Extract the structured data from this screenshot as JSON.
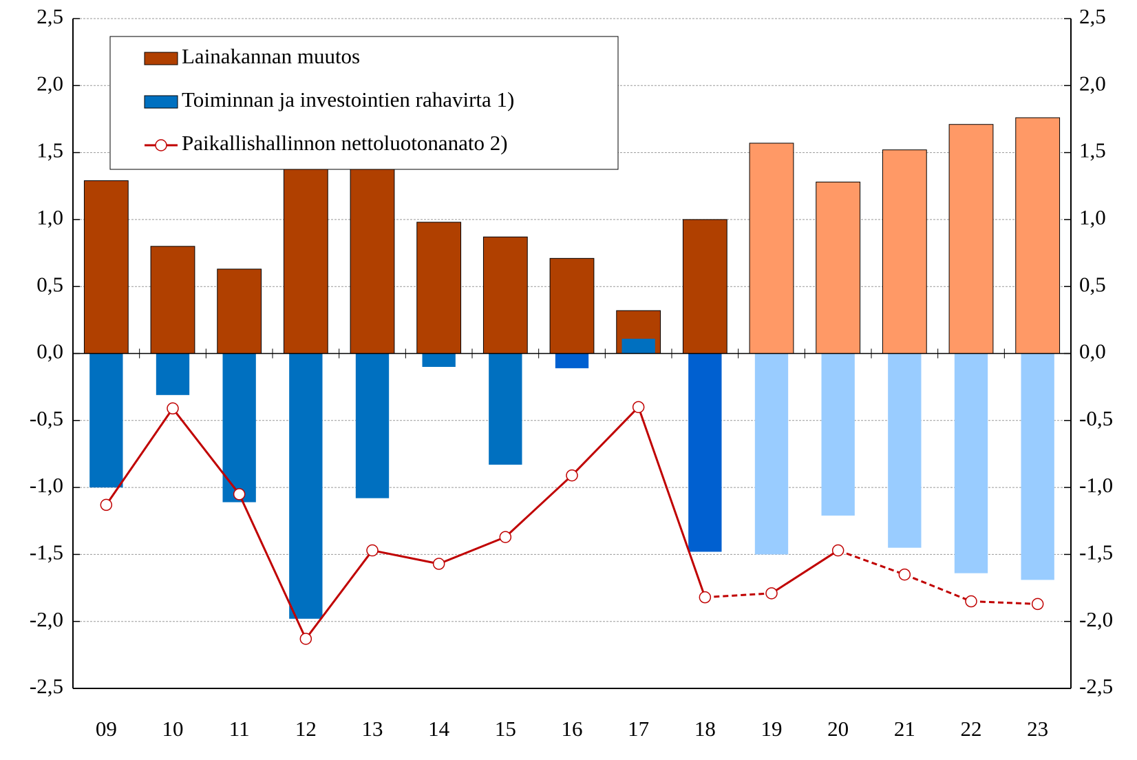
{
  "chart_data": {
    "type": "bar-line",
    "categories": [
      "09",
      "10",
      "11",
      "12",
      "13",
      "14",
      "15",
      "16",
      "17",
      "18",
      "19",
      "20",
      "21",
      "22",
      "23"
    ],
    "series": [
      {
        "name": "Lainakannan muutos",
        "type": "bar",
        "color": "#b04000",
        "colors": [
          "#b04000",
          "#b04000",
          "#b04000",
          "#b04000",
          "#b04000",
          "#b04000",
          "#b04000",
          "#b04000",
          "#b04000",
          "#b04000",
          "#ff9966",
          "#ff9966",
          "#ff9966",
          "#ff9966",
          "#ff9966"
        ],
        "values": [
          1.29,
          0.8,
          0.63,
          2.2,
          1.9,
          0.98,
          0.87,
          0.71,
          0.32,
          1.0,
          1.57,
          1.28,
          1.52,
          1.71,
          1.76
        ]
      },
      {
        "name": "Toiminnan ja investointien rahavirta 1)",
        "type": "bar",
        "color": "#0070c0",
        "colors": [
          "#0070c0",
          "#0070c0",
          "#0070c0",
          "#0070c0",
          "#0070c0",
          "#0070c0",
          "#0070c0",
          "#0060d0",
          "#0070c0",
          "#0060d0",
          "#99ccff",
          "#99ccff",
          "#99ccff",
          "#99ccff",
          "#99ccff"
        ],
        "values": [
          -1.0,
          -0.31,
          -1.11,
          -1.98,
          -1.08,
          -0.1,
          -0.83,
          -0.11,
          0.11,
          -1.48,
          -1.5,
          -1.21,
          -1.45,
          -1.64,
          -1.69
        ]
      },
      {
        "name": "Paikallishallinnon nettoluotonanato 2)",
        "type": "line",
        "color": "#c00000",
        "segment_styles": [
          "solid",
          "solid",
          "solid",
          "solid",
          "solid",
          "solid",
          "solid",
          "solid",
          "solid",
          "dashed",
          "solid",
          "dashed",
          "dashed",
          "dashed"
        ],
        "values": [
          -1.13,
          -0.41,
          -1.05,
          -2.13,
          -1.47,
          -1.57,
          -1.37,
          -0.91,
          -0.4,
          -1.82,
          -1.79,
          -1.47,
          -1.65,
          -1.85,
          -1.87
        ]
      }
    ],
    "ylim": [
      -2.5,
      2.5
    ],
    "yticks": [
      {
        "value": -2.5,
        "label": "-2,5"
      },
      {
        "value": -2.0,
        "label": "-2,0"
      },
      {
        "value": -1.5,
        "label": "-1,5"
      },
      {
        "value": -1.0,
        "label": "-1,0"
      },
      {
        "value": -0.5,
        "label": "-0,5"
      },
      {
        "value": 0.0,
        "label": "0,0"
      },
      {
        "value": 0.5,
        "label": "0,5"
      },
      {
        "value": 1.0,
        "label": "1,0"
      },
      {
        "value": 1.5,
        "label": "1,5"
      },
      {
        "value": 2.0,
        "label": "2,0"
      },
      {
        "value": 2.5,
        "label": "2,5"
      }
    ],
    "y2lim": [
      -2.5,
      2.5
    ],
    "y2ticks": [
      {
        "value": -2.5,
        "label": "-2,5"
      },
      {
        "value": -2.0,
        "label": "-2,0"
      },
      {
        "value": -1.5,
        "label": "-1,5"
      },
      {
        "value": -1.0,
        "label": "-1,0"
      },
      {
        "value": -0.5,
        "label": "-0,5"
      },
      {
        "value": 0.0,
        "label": "0,0"
      },
      {
        "value": 0.5,
        "label": "0,5"
      },
      {
        "value": 1.0,
        "label": "1,0"
      },
      {
        "value": 1.5,
        "label": "1,5"
      },
      {
        "value": 2.0,
        "label": "2,0"
      },
      {
        "value": 2.5,
        "label": "2,5"
      }
    ],
    "grid": true,
    "legend": "top-left"
  }
}
